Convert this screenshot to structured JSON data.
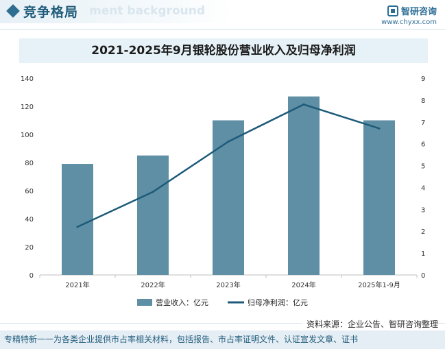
{
  "header": {
    "section_title": "竞争格局",
    "watermark": "ment background",
    "brand_name": "智研咨询",
    "brand_url": "www.chyxx.com"
  },
  "chart_data": {
    "type": "bar+line",
    "title": "2021-2025年9月银轮股份营业收入及归母净利润",
    "categories": [
      "2021年",
      "2022年",
      "2023年",
      "2024年",
      "2025年1-9月"
    ],
    "series": [
      {
        "name": "营业收入：亿元",
        "type": "bar",
        "axis": "left",
        "values": [
          79,
          85,
          110,
          127,
          110
        ]
      },
      {
        "name": "归母净利润：亿元",
        "type": "line",
        "axis": "right",
        "values": [
          2.2,
          3.8,
          6.1,
          7.8,
          6.7
        ]
      }
    ],
    "y_left": {
      "min": 0,
      "max": 140,
      "ticks": [
        0,
        20,
        40,
        60,
        80,
        100,
        120,
        140
      ]
    },
    "y_right": {
      "min": 0,
      "max": 9,
      "ticks": [
        0,
        1,
        2,
        3,
        4,
        5,
        6,
        7,
        8,
        9
      ]
    },
    "colors": {
      "bar": "#5e8fa5",
      "line": "#1d5b79"
    },
    "legend_position": "bottom",
    "grid": false
  },
  "footer": {
    "source": "资料来源：企业公告、智研咨询整理",
    "tagline": "专精特新一一为各类企业提供市占率相关材料，包括报告、市占率证明文件、认证宣发文章、证书"
  }
}
